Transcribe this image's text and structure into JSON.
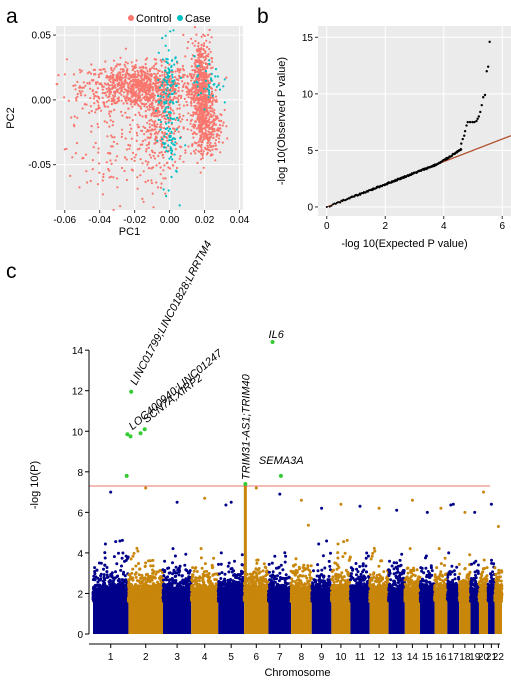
{
  "figure": {
    "panel_a": "a",
    "panel_b": "b",
    "panel_c": "c"
  },
  "chart_data": [
    {
      "type": "scatter",
      "panel": "a",
      "xlabel": "PC1",
      "ylabel": "PC2",
      "xlim": [
        -0.065,
        0.042
      ],
      "ylim": [
        -0.085,
        0.057
      ],
      "xticks": [
        -0.06,
        -0.04,
        -0.02,
        0.0,
        0.02,
        0.04
      ],
      "xtick_labels": [
        "-0.06",
        "-0.04",
        "-0.02",
        "0.00",
        "0.02",
        "0.04"
      ],
      "yticks": [
        -0.05,
        0.0,
        0.05
      ],
      "ytick_labels": [
        "-0.05",
        "0.00",
        "0.05"
      ],
      "grid": true,
      "legend_position": "top",
      "series": [
        {
          "name": "Control",
          "color": "#f8766d",
          "clusters": [
            {
              "cx": -0.018,
              "cy": 0.01,
              "sx": 0.016,
              "sy": 0.009,
              "n": 900
            },
            {
              "cx": -0.006,
              "cy": -0.02,
              "sx": 0.007,
              "sy": 0.02,
              "n": 320
            },
            {
              "cx": 0.018,
              "cy": 0.008,
              "sx": 0.003,
              "sy": 0.02,
              "n": 600
            },
            {
              "cx": 0.022,
              "cy": -0.02,
              "sx": 0.004,
              "sy": 0.012,
              "n": 250
            },
            {
              "cx": -0.035,
              "cy": -0.04,
              "sx": 0.012,
              "sy": 0.02,
              "n": 110
            }
          ]
        },
        {
          "name": "Case",
          "color": "#00bfc4",
          "clusters": [
            {
              "cx": -0.001,
              "cy": -0.005,
              "sx": 0.003,
              "sy": 0.03,
              "n": 160
            },
            {
              "cx": 0.022,
              "cy": 0.015,
              "sx": 0.004,
              "sy": 0.01,
              "n": 40
            }
          ]
        }
      ]
    },
    {
      "type": "scatter",
      "panel": "b",
      "xlabel": "-log 10(Expected P value)",
      "ylabel": "-log 10(Observed P value)",
      "xlim": [
        -0.3,
        6.3
      ],
      "ylim": [
        -0.8,
        16
      ],
      "xticks": [
        0,
        2,
        4,
        6
      ],
      "xtick_labels": [
        "0",
        "2",
        "4",
        "6"
      ],
      "yticks": [
        0,
        5,
        10,
        15
      ],
      "ytick_labels": [
        "0",
        "5",
        "10",
        "15"
      ],
      "grid": true,
      "reference_line": {
        "from": [
          0,
          0
        ],
        "to": [
          6.3,
          6.3
        ],
        "color": "#b0502a"
      },
      "points_tail": [
        {
          "x": 4.6,
          "y": 5.6
        },
        {
          "x": 4.65,
          "y": 6.0
        },
        {
          "x": 4.7,
          "y": 6.3
        },
        {
          "x": 4.73,
          "y": 6.7
        },
        {
          "x": 4.78,
          "y": 7.2
        },
        {
          "x": 4.82,
          "y": 7.5
        },
        {
          "x": 4.9,
          "y": 7.5
        },
        {
          "x": 4.98,
          "y": 7.5
        },
        {
          "x": 5.05,
          "y": 7.5
        },
        {
          "x": 5.12,
          "y": 7.6
        },
        {
          "x": 5.16,
          "y": 7.8
        },
        {
          "x": 5.2,
          "y": 8.0
        },
        {
          "x": 5.25,
          "y": 8.4
        },
        {
          "x": 5.3,
          "y": 9.0
        },
        {
          "x": 5.35,
          "y": 9.7
        },
        {
          "x": 5.41,
          "y": 9.9
        },
        {
          "x": 5.47,
          "y": 12.0
        },
        {
          "x": 5.52,
          "y": 12.4
        },
        {
          "x": 5.57,
          "y": 14.6
        }
      ],
      "color": "#000000"
    },
    {
      "type": "scatter",
      "panel": "c",
      "subtype": "manhattan",
      "xlabel": "Chromosome",
      "ylabel": "-log 10(P)",
      "ylim": [
        0,
        14.6
      ],
      "yticks": [
        0,
        2,
        4,
        6,
        8,
        10,
        12,
        14
      ],
      "ytick_labels": [
        "0",
        "2",
        "4",
        "6",
        "8",
        "10",
        "12",
        "14"
      ],
      "grid": false,
      "significance_threshold": 7.3,
      "threshold_color": "#e0463c",
      "chromosomes": [
        "1",
        "2",
        "3",
        "4",
        "5",
        "6",
        "7",
        "8",
        "9",
        "10",
        "11",
        "12",
        "13",
        "14",
        "15",
        "16",
        "17",
        "18",
        "19",
        "20",
        "21",
        "22"
      ],
      "chromosome_sizes": [
        249,
        243,
        198,
        190,
        182,
        171,
        159,
        145,
        138,
        134,
        135,
        133,
        114,
        107,
        102,
        90,
        83,
        80,
        59,
        64,
        47,
        51
      ],
      "chromosome_max": [
        7.0,
        7.2,
        6.5,
        6.7,
        6.5,
        7.2,
        6.9,
        6.6,
        6.2,
        6.4,
        6.3,
        6.2,
        6.1,
        6.6,
        6.0,
        6.2,
        6.4,
        6.0,
        6.0,
        7.0,
        6.4,
        5.3
      ],
      "colors": [
        "#00008b",
        "#c8860a"
      ],
      "hit_color": "#33cc33",
      "hits": [
        {
          "chromosome": "1",
          "pos": 0.95,
          "y": 7.8
        },
        {
          "chromosome": "1",
          "pos": 0.97,
          "y": 9.85
        },
        {
          "chromosome": "2",
          "pos": 0.08,
          "y": 11.95
        },
        {
          "chromosome": "2",
          "pos": 0.06,
          "y": 9.75
        },
        {
          "chromosome": "2",
          "pos": 0.35,
          "y": 9.9
        },
        {
          "chromosome": "2",
          "pos": 0.47,
          "y": 10.1
        },
        {
          "chromosome": "6",
          "pos": 0.05,
          "y": 7.4
        },
        {
          "chromosome": "7",
          "pos": 0.18,
          "y": 14.4
        },
        {
          "chromosome": "7",
          "pos": 0.55,
          "y": 7.8
        }
      ],
      "labels": [
        {
          "text": "LINC01799;LINC01828;LRRTM4",
          "chromosome": "2",
          "pos": 0.08,
          "y": 11.95
        },
        {
          "text": "LOC400940;LINC01247",
          "chromosome": "2",
          "pos": 0.06,
          "y": 9.75
        },
        {
          "text": "SCN7A;XIRP2",
          "chromosome": "2",
          "pos": 0.47,
          "y": 10.1
        },
        {
          "text": "TRIM31-AS1;TRIM40",
          "chromosome": "6",
          "pos": 0.05,
          "y": 7.4
        },
        {
          "text": "IL6",
          "chromosome": "7",
          "pos": 0.18,
          "y": 14.4
        },
        {
          "text": "SEMA3A",
          "chromosome": "7",
          "pos": 0.55,
          "y": 7.8
        }
      ]
    }
  ]
}
